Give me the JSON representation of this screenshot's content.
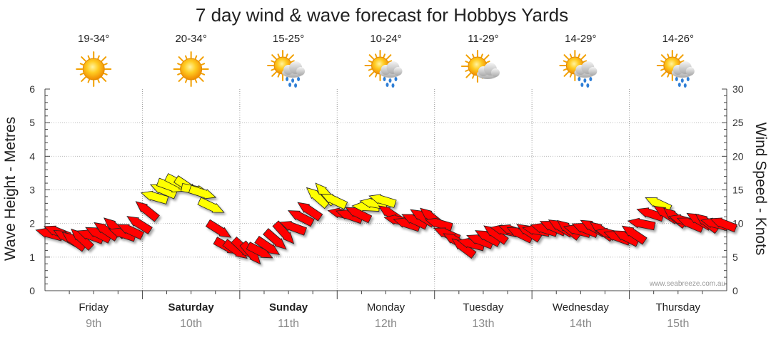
{
  "chart_data": {
    "type": "line",
    "title": "7 day wind & wave forecast for Hobbys Yards",
    "ylabel_left": "Wave Height - Metres",
    "ylabel_right": "Wind Speed - Knots",
    "ylim_left": [
      0,
      6
    ],
    "ylim_right": [
      0,
      30
    ],
    "yticks_left": [
      "0",
      "1",
      "2",
      "3",
      "4",
      "5",
      "6"
    ],
    "yticks_right": [
      "0",
      "5",
      "10",
      "15",
      "20",
      "25",
      "30"
    ],
    "grid": true,
    "watermark": "www.seabreeze.com.au",
    "days": [
      {
        "name": "Friday",
        "date": "9th",
        "temp": "19-34°",
        "weather": "sunny-icon",
        "weekend": false
      },
      {
        "name": "Saturday",
        "date": "10th",
        "temp": "20-34°",
        "weather": "sunny-icon",
        "weekend": true
      },
      {
        "name": "Sunday",
        "date": "11th",
        "temp": "15-25°",
        "weather": "sun-showers-icon",
        "weekend": true
      },
      {
        "name": "Monday",
        "date": "12th",
        "temp": "10-24°",
        "weather": "sun-showers-icon",
        "weekend": false
      },
      {
        "name": "Tuesday",
        "date": "13th",
        "temp": "11-29°",
        "weather": "partly-cloudy-icon",
        "weekend": false
      },
      {
        "name": "Wednesday",
        "date": "14th",
        "temp": "14-29°",
        "weather": "sun-showers-icon",
        "weekend": false
      },
      {
        "name": "Thursday",
        "date": "15th",
        "temp": "14-26°",
        "weather": "sun-showers-icon",
        "weekend": false
      }
    ],
    "series": [
      {
        "name": "Wind",
        "units": "knots",
        "points": [
          [
            0.0,
            8.5
          ],
          [
            0.08,
            8.8
          ],
          [
            0.17,
            8.0
          ],
          [
            0.25,
            7.5
          ],
          [
            0.33,
            7.8
          ],
          [
            0.42,
            8.2
          ],
          [
            0.5,
            8.5
          ],
          [
            0.58,
            9.0
          ],
          [
            0.67,
            9.5
          ],
          [
            0.75,
            8.5
          ],
          [
            0.83,
            9.0
          ],
          [
            0.92,
            10.0
          ],
          [
            1.0,
            12.0
          ],
          [
            1.08,
            14.0
          ],
          [
            1.17,
            15.0
          ],
          [
            1.25,
            15.5
          ],
          [
            1.33,
            16.0
          ],
          [
            1.42,
            15.5
          ],
          [
            1.5,
            15.0
          ],
          [
            1.58,
            14.5
          ],
          [
            1.67,
            12.5
          ],
          [
            1.75,
            9.0
          ],
          [
            1.83,
            6.5
          ],
          [
            1.92,
            6.0
          ],
          [
            2.0,
            6.2
          ],
          [
            2.08,
            5.5
          ],
          [
            2.17,
            5.8
          ],
          [
            2.25,
            6.5
          ],
          [
            2.33,
            7.5
          ],
          [
            2.42,
            8.5
          ],
          [
            2.5,
            9.5
          ],
          [
            2.58,
            11.0
          ],
          [
            2.67,
            12.0
          ],
          [
            2.75,
            14.0
          ],
          [
            2.83,
            14.5
          ],
          [
            2.92,
            13.5
          ],
          [
            3.0,
            11.5
          ],
          [
            3.08,
            11.2
          ],
          [
            3.17,
            11.5
          ],
          [
            3.25,
            12.5
          ],
          [
            3.33,
            13.0
          ],
          [
            3.42,
            13.5
          ],
          [
            3.5,
            11.5
          ],
          [
            3.58,
            10.5
          ],
          [
            3.67,
            10.0
          ],
          [
            3.75,
            10.5
          ],
          [
            3.83,
            11.0
          ],
          [
            3.92,
            11.0
          ],
          [
            4.0,
            10.0
          ],
          [
            4.08,
            8.5
          ],
          [
            4.17,
            7.5
          ],
          [
            4.25,
            6.5
          ],
          [
            4.33,
            7.0
          ],
          [
            4.42,
            7.5
          ],
          [
            4.5,
            8.0
          ],
          [
            4.58,
            8.5
          ],
          [
            4.67,
            9.0
          ],
          [
            4.75,
            9.0
          ],
          [
            4.83,
            8.5
          ],
          [
            4.92,
            8.8
          ],
          [
            5.0,
            9.0
          ],
          [
            5.08,
            9.2
          ],
          [
            5.17,
            9.5
          ],
          [
            5.25,
            9.5
          ],
          [
            5.33,
            9.2
          ],
          [
            5.42,
            9.0
          ],
          [
            5.5,
            9.2
          ],
          [
            5.58,
            9.5
          ],
          [
            5.67,
            9.0
          ],
          [
            5.75,
            8.5
          ],
          [
            5.83,
            8.0
          ],
          [
            5.92,
            8.0
          ],
          [
            6.0,
            8.5
          ],
          [
            6.08,
            10.0
          ],
          [
            6.17,
            11.5
          ],
          [
            6.25,
            13.0
          ],
          [
            6.33,
            11.5
          ],
          [
            6.42,
            11.0
          ],
          [
            6.5,
            10.5
          ],
          [
            6.58,
            10.0
          ],
          [
            6.67,
            10.5
          ],
          [
            6.75,
            10.2
          ],
          [
            6.83,
            10.0
          ],
          [
            6.92,
            10.0
          ]
        ]
      }
    ]
  }
}
